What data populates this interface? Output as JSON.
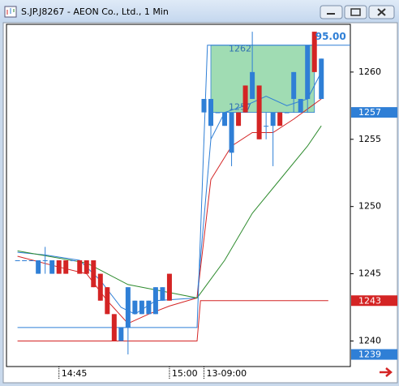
{
  "chart_data": {
    "type": "candlestick",
    "title": "S.JP.J8267 - AEON Co., Ltd., 1 Min",
    "x": [
      0,
      1,
      2,
      3,
      4,
      5,
      6,
      7,
      8,
      9,
      10,
      11,
      12,
      13,
      14,
      15,
      16,
      17,
      18,
      19,
      20,
      21,
      22,
      27,
      28,
      29,
      30,
      31,
      32,
      33,
      34,
      35,
      36,
      37,
      38,
      39,
      40,
      41,
      42,
      43,
      44
    ],
    "open": [
      1246,
      1246,
      1246,
      1245,
      1246,
      1245,
      1246,
      1246,
      1246,
      1246,
      1246,
      1246,
      1245,
      1244,
      1242,
      1240,
      1241,
      1242,
      1242,
      1242,
      1242,
      1243,
      1245,
      1257,
      1256,
      1257,
      1256,
      1254,
      1257,
      1259,
      1258,
      1259,
      1256,
      1256,
      1257,
      1257,
      1258,
      1257,
      1258,
      1263,
      1258
    ],
    "high": [
      1246,
      1246,
      1246,
      1246,
      1247,
      1246,
      1246,
      1246,
      1246,
      1246,
      1246,
      1246,
      1245,
      1244,
      1242,
      1241,
      1244,
      1243,
      1243,
      1243,
      1244,
      1244,
      1245,
      1258,
      1258,
      1257,
      1257,
      1257,
      1257,
      1259,
      1263,
      1259,
      1257,
      1257,
      1257,
      1257,
      1260,
      1258,
      1262,
      1263,
      1261
    ],
    "low": [
      1246,
      1246,
      1246,
      1245,
      1245,
      1245,
      1245,
      1245,
      1246,
      1245,
      1245,
      1244,
      1243,
      1242,
      1240,
      1240,
      1239,
      1242,
      1242,
      1242,
      1242,
      1243,
      1243,
      1257,
      1255,
      1257,
      1256,
      1253,
      1256,
      1257,
      1258,
      1255,
      1255,
      1253,
      1256,
      1257,
      1257,
      1257,
      1257,
      1260,
      1258
    ],
    "close": [
      1246,
      1246,
      1246,
      1246,
      1246,
      1246,
      1245,
      1245,
      1246,
      1245,
      1245,
      1244,
      1243,
      1242,
      1240,
      1241,
      1244,
      1243,
      1243,
      1243,
      1244,
      1244,
      1243,
      1258,
      1258,
      1257,
      1257,
      1257,
      1256,
      1257,
      1260,
      1255,
      1256,
      1257,
      1256,
      1257,
      1260,
      1258,
      1262,
      1260,
      1261
    ],
    "up_color": "#2f7fd6",
    "down_color": "#d42424",
    "series": [
      {
        "color": "#2f7fd6",
        "x": [
          0,
          4,
          9,
          12,
          15,
          17,
          20,
          26,
          28,
          30,
          33,
          36,
          39,
          42,
          44
        ],
        "values": [
          1246.6,
          1246.4,
          1246,
          1244.5,
          1242.5,
          1242,
          1243,
          1243.2,
          1255,
          1257,
          1257.5,
          1258.2,
          1257.5,
          1258,
          1260
        ]
      },
      {
        "color": "#d42424",
        "x": [
          0,
          6,
          10,
          13,
          16,
          19,
          22,
          26,
          28,
          31,
          34,
          37,
          40,
          44
        ],
        "values": [
          1246.3,
          1245.5,
          1245,
          1243,
          1241.3,
          1242,
          1242.6,
          1243.2,
          1252,
          1254.5,
          1255.5,
          1255.5,
          1256.5,
          1258
        ]
      },
      {
        "color": "#2e8b2e",
        "x": [
          0,
          10,
          16,
          22,
          26,
          30,
          34,
          38,
          42,
          44
        ],
        "values": [
          1246.7,
          1245.8,
          1244.2,
          1243.6,
          1243.2,
          1246,
          1249.5,
          1252,
          1254.5,
          1256
        ]
      },
      {
        "color": "#d42424",
        "x": [
          0,
          26,
          26.5,
          45
        ],
        "values": [
          1240,
          1240,
          1243,
          1243
        ]
      },
      {
        "color": "#2f7fd6",
        "x": [
          0,
          26,
          27.5,
          48.2
        ],
        "values": [
          1241,
          1241,
          1262,
          1262
        ]
      }
    ],
    "box": {
      "x": [
        28,
        43
      ],
      "y": [
        1257,
        1262
      ],
      "color": "#8fd6a6"
    },
    "annotation": "95.00",
    "xlim": [
      -1.6,
      48.2
    ],
    "xticks": [
      {
        "value": 6,
        "label": "14:45"
      },
      {
        "value": 22,
        "label": "15:00"
      },
      {
        "value": 27,
        "label": "13-09:00"
      }
    ],
    "ylim": [
      1238.1,
      1263.55
    ],
    "yticks": [
      1240,
      1245,
      1250,
      1255,
      1260
    ],
    "price_markers": [
      {
        "value": 1257,
        "color": "#2f7fd6"
      },
      {
        "value": 1243,
        "color": "#d42424"
      },
      {
        "value": 1239,
        "color": "#2f7fd6"
      }
    ]
  }
}
